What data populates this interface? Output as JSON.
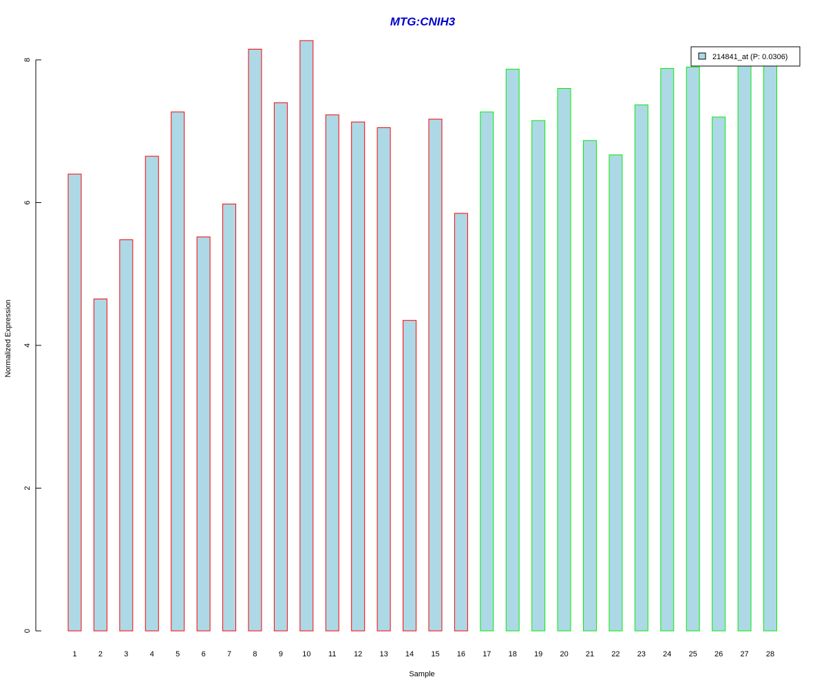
{
  "chart_data": {
    "type": "bar",
    "title": "MTG:CNIH3",
    "title_color": "#0000CC",
    "xlabel": "Sample",
    "ylabel": "Normalized Expression",
    "ylim": [
      0,
      8.3
    ],
    "yticks": [
      0,
      2,
      4,
      6,
      8
    ],
    "categories": [
      "1",
      "2",
      "3",
      "4",
      "5",
      "6",
      "7",
      "8",
      "9",
      "10",
      "11",
      "12",
      "13",
      "14",
      "15",
      "16",
      "17",
      "18",
      "19",
      "20",
      "21",
      "22",
      "23",
      "24",
      "25",
      "26",
      "27",
      "28"
    ],
    "series": [
      {
        "name": "214841_at (P: 0.0306)",
        "values": [
          6.4,
          4.65,
          5.48,
          6.65,
          7.27,
          5.52,
          5.98,
          8.15,
          7.4,
          8.27,
          7.23,
          7.13,
          7.05,
          4.35,
          7.17,
          5.85,
          7.27,
          7.87,
          7.15,
          7.6,
          6.87,
          6.67,
          7.37,
          7.88,
          7.9,
          7.2,
          7.95,
          7.93
        ],
        "fill": "#ADD8E6"
      }
    ],
    "group_border_colors": [
      "#FF0000",
      "#FF0000",
      "#FF0000",
      "#FF0000",
      "#FF0000",
      "#FF0000",
      "#FF0000",
      "#FF0000",
      "#FF0000",
      "#FF0000",
      "#FF0000",
      "#FF0000",
      "#FF0000",
      "#FF0000",
      "#FF0000",
      "#FF0000",
      "#00EE00",
      "#00EE00",
      "#00EE00",
      "#00EE00",
      "#00EE00",
      "#00EE00",
      "#00EE00",
      "#00EE00",
      "#00EE00",
      "#00EE00",
      "#00EE00",
      "#00EE00"
    ],
    "legend": {
      "label": "214841_at (P: 0.0306)",
      "placement": "top-right"
    },
    "grid": false
  }
}
